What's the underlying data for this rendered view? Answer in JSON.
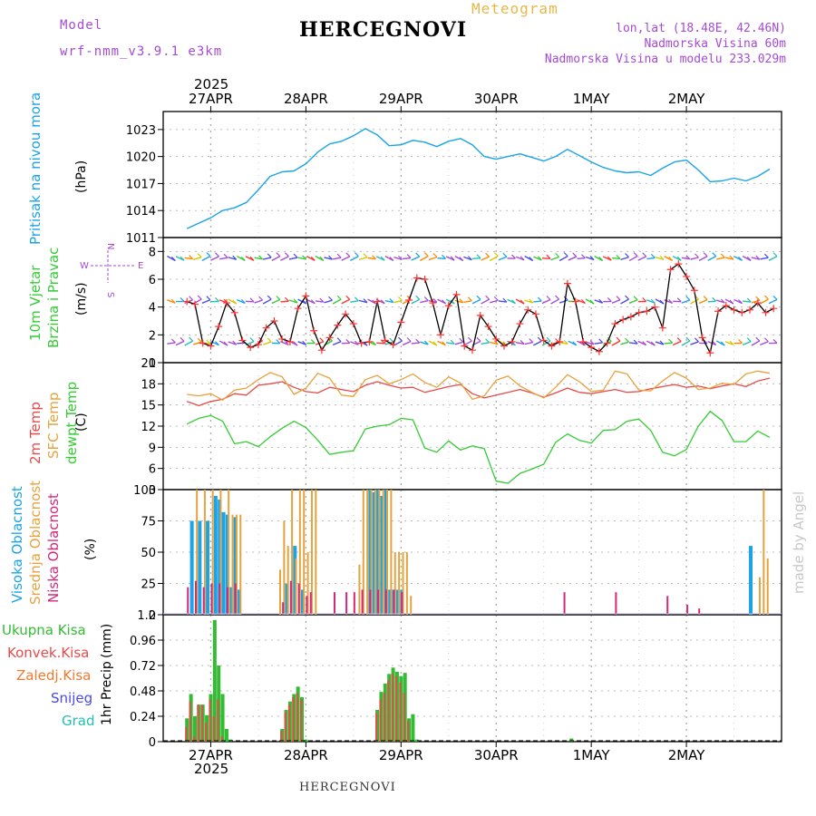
{
  "header": {
    "model_label": "Model",
    "model_name": "wrf-nmm_v3.9.1 e3km",
    "title": "HERCEGNOVI",
    "subtitle": "Meteogram",
    "lonlat": "lon,lat (18.48E, 42.46N)",
    "elevation": "Nadmorska Visina 60m",
    "model_elevation": "Nadmorska Visina u modelu 233.029m"
  },
  "footer": {
    "station": "HERCEGNOVI",
    "credit": "made by Angel"
  },
  "colors": {
    "pressure": "#1aa3e6",
    "temp2m": "#e84a4a",
    "sfc_temp": "#e6a23c",
    "dewpoint": "#33cc33",
    "wind_speed": "#000000",
    "wind_marker": "#ff3333",
    "high_cloud": "#1aa3e6",
    "mid_cloud": "#e6a23c",
    "low_cloud": "#d4287a",
    "total_precip": "#33bb33",
    "conv_precip": "#e84a4a",
    "freezing_rain": "#f07a30",
    "snow": "#4a4ae6",
    "hail": "#22c0b0",
    "title_color": "#000000",
    "model_color": "#a64ad4",
    "meteogram_color": "#e6b84a"
  },
  "chart_data": [
    {
      "type": "line",
      "id": "pressure",
      "ylabel": "Pritisak na nivou mora",
      "unit_label": "(hPa)",
      "ylim": [
        1011,
        1025
      ],
      "yticks": [
        1011,
        1014,
        1017,
        1020,
        1023
      ],
      "x_hours": [
        0,
        3,
        6,
        9,
        12,
        15,
        18,
        21,
        24,
        27,
        30,
        33,
        36,
        39,
        42,
        45,
        48,
        51,
        54,
        57,
        60,
        63,
        66,
        69,
        72,
        75,
        78,
        81,
        84,
        87,
        90,
        93,
        96,
        99,
        102,
        105,
        108,
        111,
        114,
        117,
        120,
        123,
        126,
        129,
        132,
        135,
        138,
        141,
        144,
        147
      ],
      "values": [
        1012.0,
        1012.6,
        1013.2,
        1014.0,
        1014.3,
        1014.9,
        1016.3,
        1017.8,
        1018.3,
        1018.4,
        1019.2,
        1020.5,
        1021.4,
        1021.7,
        1022.3,
        1023.1,
        1022.4,
        1021.2,
        1021.3,
        1021.8,
        1021.6,
        1021.1,
        1021.7,
        1022.0,
        1021.3,
        1020.0,
        1019.7,
        1020.0,
        1020.3,
        1019.9,
        1019.5,
        1020.0,
        1020.8,
        1020.1,
        1019.4,
        1018.8,
        1018.4,
        1018.2,
        1018.3,
        1017.9,
        1018.7,
        1019.4,
        1019.6,
        1018.5,
        1017.2,
        1017.3,
        1017.6,
        1017.3,
        1017.8,
        1018.6
      ]
    },
    {
      "type": "line",
      "id": "wind",
      "ylabel_lines": [
        "10m Vjetar",
        "Brzina i Pravac"
      ],
      "unit_label": "(m/s)",
      "compass": [
        "N",
        "W",
        "E",
        "S"
      ],
      "ylim": [
        0,
        9
      ],
      "yticks": [
        0,
        2,
        4,
        6,
        8
      ],
      "x_hours": [
        0,
        2,
        4,
        6,
        8,
        10,
        12,
        14,
        16,
        18,
        20,
        22,
        24,
        26,
        28,
        30,
        32,
        34,
        36,
        38,
        40,
        42,
        44,
        46,
        48,
        50,
        52,
        54,
        56,
        58,
        60,
        62,
        64,
        66,
        68,
        70,
        72,
        74,
        76,
        78,
        80,
        82,
        84,
        86,
        88,
        90,
        92,
        94,
        96,
        98,
        100,
        102,
        104,
        106,
        108,
        110,
        112,
        114,
        116,
        118,
        120,
        122,
        124,
        126,
        128,
        130,
        132,
        134,
        136,
        138,
        140,
        142,
        144,
        146,
        148
      ],
      "values": [
        4.4,
        4.2,
        1.4,
        1.2,
        2.6,
        4.3,
        3.6,
        1.6,
        1.1,
        1.3,
        2.5,
        3.0,
        1.7,
        1.5,
        3.9,
        4.8,
        2.3,
        0.9,
        1.8,
        2.7,
        3.5,
        2.8,
        1.4,
        1.5,
        4.4,
        1.6,
        1.3,
        2.9,
        4.5,
        6.1,
        6.0,
        4.3,
        2.0,
        4.1,
        4.9,
        1.2,
        0.9,
        3.4,
        2.6,
        1.7,
        1.2,
        1.5,
        2.8,
        3.8,
        3.5,
        1.6,
        1.2,
        1.5,
        5.7,
        4.4,
        1.5,
        1.1,
        0.8,
        1.4,
        2.8,
        3.1,
        3.3,
        3.6,
        3.7,
        4.0,
        2.5,
        6.7,
        7.1,
        6.2,
        5.2,
        1.8,
        0.7,
        3.7,
        4.1,
        3.8,
        3.6,
        3.8,
        4.3,
        3.6,
        3.9
      ],
      "direction_bands": [
        {
          "level": 7.5,
          "dir": "S"
        },
        {
          "level": 4.4,
          "dir": "E"
        },
        {
          "level": 1.4,
          "dir": "W"
        }
      ]
    },
    {
      "type": "line",
      "id": "temperature",
      "ylabel_lines": [
        "2m Temp",
        "SFC Temp",
        "dewpt Temp"
      ],
      "unit_label": "(C)",
      "ylim": [
        3,
        21
      ],
      "yticks": [
        3,
        6,
        9,
        12,
        15,
        18,
        21
      ],
      "x_hours": [
        0,
        3,
        6,
        9,
        12,
        15,
        18,
        21,
        24,
        27,
        30,
        33,
        36,
        39,
        42,
        45,
        48,
        51,
        54,
        57,
        60,
        63,
        66,
        69,
        72,
        75,
        78,
        81,
        84,
        87,
        90,
        93,
        96,
        99,
        102,
        105,
        108,
        111,
        114,
        117,
        120,
        123,
        126,
        129,
        132,
        135,
        138,
        141,
        144,
        147
      ],
      "series": [
        {
          "name": "2m Temp",
          "values": [
            15.5,
            14.9,
            15.5,
            15.8,
            16.6,
            16.4,
            17.8,
            18.0,
            18.3,
            17.5,
            16.9,
            16.7,
            17.5,
            17.2,
            16.9,
            17.8,
            18.3,
            17.8,
            17.4,
            17.5,
            16.8,
            17.2,
            17.6,
            17.9,
            16.6,
            16.0,
            16.4,
            16.8,
            17.2,
            16.7,
            16.1,
            16.7,
            17.4,
            16.8,
            16.6,
            16.9,
            17.2,
            16.8,
            16.9,
            17.3,
            17.6,
            17.9,
            17.5,
            17.7,
            17.3,
            17.7,
            18.0,
            17.6,
            18.4,
            18.8
          ]
        },
        {
          "name": "SFC Temp",
          "values": [
            16.5,
            16.3,
            16.6,
            15.7,
            17.1,
            17.4,
            18.6,
            19.6,
            19.0,
            16.5,
            17.4,
            19.5,
            18.8,
            16.4,
            16.2,
            18.6,
            19.2,
            18.0,
            18.6,
            19.4,
            18.2,
            17.5,
            19.0,
            18.1,
            15.8,
            16.3,
            18.5,
            19.1,
            17.7,
            16.8,
            16.0,
            17.5,
            19.3,
            18.3,
            16.9,
            17.1,
            19.8,
            19.4,
            17.1,
            17.0,
            18.4,
            19.6,
            18.8,
            17.2,
            17.4,
            18.1,
            17.9,
            19.4,
            19.8,
            19.5
          ]
        },
        {
          "name": "dewpt Temp",
          "values": [
            12.3,
            13.1,
            13.5,
            12.7,
            9.5,
            9.8,
            9.1,
            10.5,
            11.7,
            12.7,
            11.8,
            10.0,
            8.0,
            8.3,
            8.5,
            11.6,
            12.0,
            12.2,
            13.1,
            12.9,
            8.9,
            8.3,
            9.9,
            8.6,
            9.2,
            8.8,
            4.2,
            3.9,
            5.3,
            5.9,
            6.6,
            9.7,
            10.9,
            10.0,
            9.6,
            11.4,
            11.5,
            12.7,
            13.0,
            11.4,
            8.3,
            7.8,
            8.7,
            12.0,
            14.1,
            12.8,
            9.8,
            9.8,
            11.3,
            10.4
          ]
        }
      ]
    },
    {
      "type": "bar",
      "id": "clouds",
      "ylabel_lines": [
        "Visoka Oblacnost",
        "Srednja Oblacnost",
        "Niska Oblacnost"
      ],
      "unit_label": "(%)",
      "ylim": [
        0,
        100
      ],
      "yticks": [
        0,
        25,
        50,
        75,
        100
      ],
      "series": [
        {
          "name": "Visoka Oblacnost",
          "hours": [
            1,
            3,
            5,
            7,
            8,
            9,
            10,
            11,
            12,
            13,
            25,
            27,
            29,
            46,
            47,
            48,
            49,
            50,
            51,
            52,
            53,
            54,
            142
          ],
          "values": [
            75,
            75,
            75,
            95,
            92,
            82,
            80,
            22,
            78,
            20,
            25,
            55,
            20,
            100,
            98,
            100,
            95,
            100,
            20,
            20,
            20,
            20,
            55
          ]
        },
        {
          "name": "Srednja Oblacnost",
          "hours": [
            2,
            4,
            6,
            8,
            10,
            11,
            12,
            13,
            23,
            24,
            25,
            26,
            27,
            28,
            29,
            30,
            31,
            32,
            43,
            44,
            45,
            46,
            47,
            48,
            49,
            50,
            51,
            52,
            53,
            54,
            55,
            56,
            144,
            145,
            146
          ],
          "values": [
            100,
            100,
            100,
            100,
            100,
            80,
            80,
            80,
            36,
            75,
            55,
            100,
            45,
            100,
            100,
            50,
            100,
            100,
            40,
            100,
            100,
            100,
            100,
            100,
            100,
            100,
            100,
            50,
            50,
            50,
            50,
            15,
            30,
            100,
            45
          ]
        },
        {
          "name": "Niska Oblacnost",
          "hours": [
            0,
            2,
            4,
            6,
            8,
            10,
            12,
            24,
            26,
            28,
            30,
            31,
            37,
            40,
            42,
            44,
            46,
            48,
            50,
            52,
            54,
            95,
            108,
            121,
            126,
            129
          ],
          "values": [
            22,
            27,
            22,
            25,
            25,
            22,
            25,
            10,
            27,
            25,
            15,
            18,
            18,
            18,
            18,
            20,
            20,
            20,
            20,
            20,
            18,
            18,
            18,
            15,
            8,
            5
          ]
        }
      ]
    },
    {
      "type": "bar",
      "id": "precip",
      "ylabel": "1hr Precip",
      "unit_label": "(mm)",
      "legend": [
        "Ukupna Kisa",
        "Konvek.Kisa",
        "Zaledj.Kisa",
        "Snijeg",
        "Grad"
      ],
      "ylim": [
        0,
        1.2
      ],
      "yticks": [
        0,
        0.24,
        0.48,
        0.72,
        0.96,
        1.2
      ],
      "xlabels": [
        "27APR",
        "28APR",
        "29APR",
        "30APR",
        "1MAY",
        "2MAY"
      ],
      "year_label": "2025",
      "series": [
        {
          "name": "Ukupna Kisa",
          "hours": [
            0,
            1,
            2,
            3,
            4,
            5,
            6,
            7,
            8,
            9,
            10,
            11,
            24,
            25,
            26,
            27,
            28,
            29,
            30,
            48,
            49,
            50,
            51,
            52,
            53,
            54,
            55,
            56,
            57,
            58,
            97
          ],
          "values": [
            0.22,
            0.45,
            0.24,
            0.35,
            0.35,
            0.25,
            0.45,
            1.15,
            0.72,
            0.45,
            0.12,
            0.02,
            0.12,
            0.3,
            0.38,
            0.45,
            0.52,
            0.42,
            0.02,
            0.3,
            0.47,
            0.55,
            0.64,
            0.7,
            0.66,
            0.62,
            0.65,
            0.22,
            0.26,
            0.02,
            0.03
          ]
        },
        {
          "name": "Konvek.Kisa",
          "hours": [
            0,
            1,
            2,
            3,
            4,
            5,
            6,
            7,
            8,
            9,
            24,
            25,
            26,
            27,
            28,
            29,
            48,
            49,
            50,
            51,
            52,
            53,
            54,
            55,
            56
          ],
          "values": [
            0.14,
            0.38,
            0.05,
            0.35,
            0.35,
            0.18,
            0.4,
            0.24,
            0.4,
            0.05,
            0.1,
            0.28,
            0.35,
            0.42,
            0.46,
            0.4,
            0.27,
            0.4,
            0.46,
            0.58,
            0.64,
            0.62,
            0.56,
            0.46,
            0.2
          ]
        }
      ]
    }
  ]
}
